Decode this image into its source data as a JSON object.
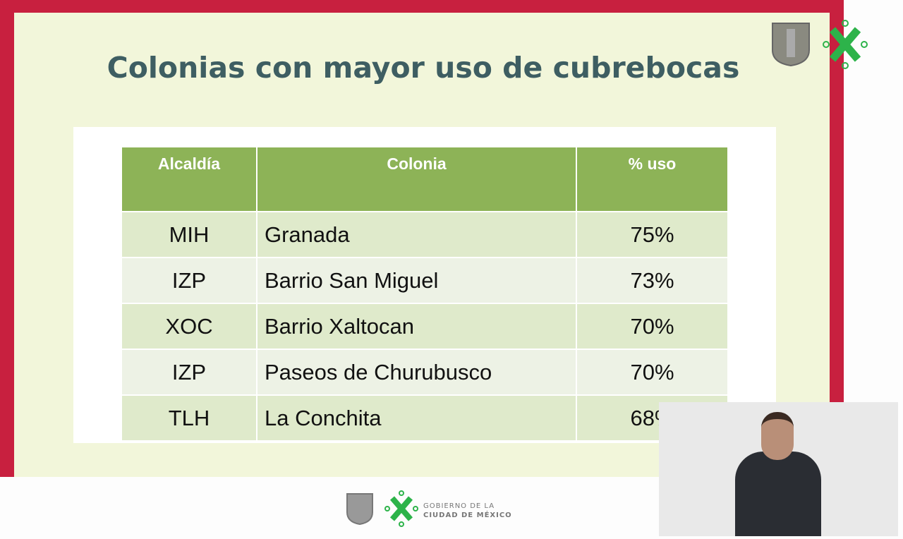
{
  "slide": {
    "title": "Colonias con mayor uso de cubrebocas"
  },
  "table": {
    "headers": [
      "Alcaldía",
      "Colonia",
      "% uso"
    ],
    "rows": [
      [
        "MIH",
        "Granada",
        "75%"
      ],
      [
        "IZP",
        "Barrio San Miguel",
        "73%"
      ],
      [
        "XOC",
        "Barrio Xaltocan",
        "70%"
      ],
      [
        "IZP",
        "Paseos de Churubusco",
        "70%"
      ],
      [
        "TLH",
        "La Conchita",
        "68%"
      ]
    ]
  },
  "footer": {
    "line1": "GOBIERNO DE LA",
    "line2": "CIUDAD DE MÉXICO"
  },
  "colors": {
    "frame": "#c8203f",
    "header": "#8db357",
    "title": "#3e5e62",
    "logo_green": "#2db34a"
  }
}
